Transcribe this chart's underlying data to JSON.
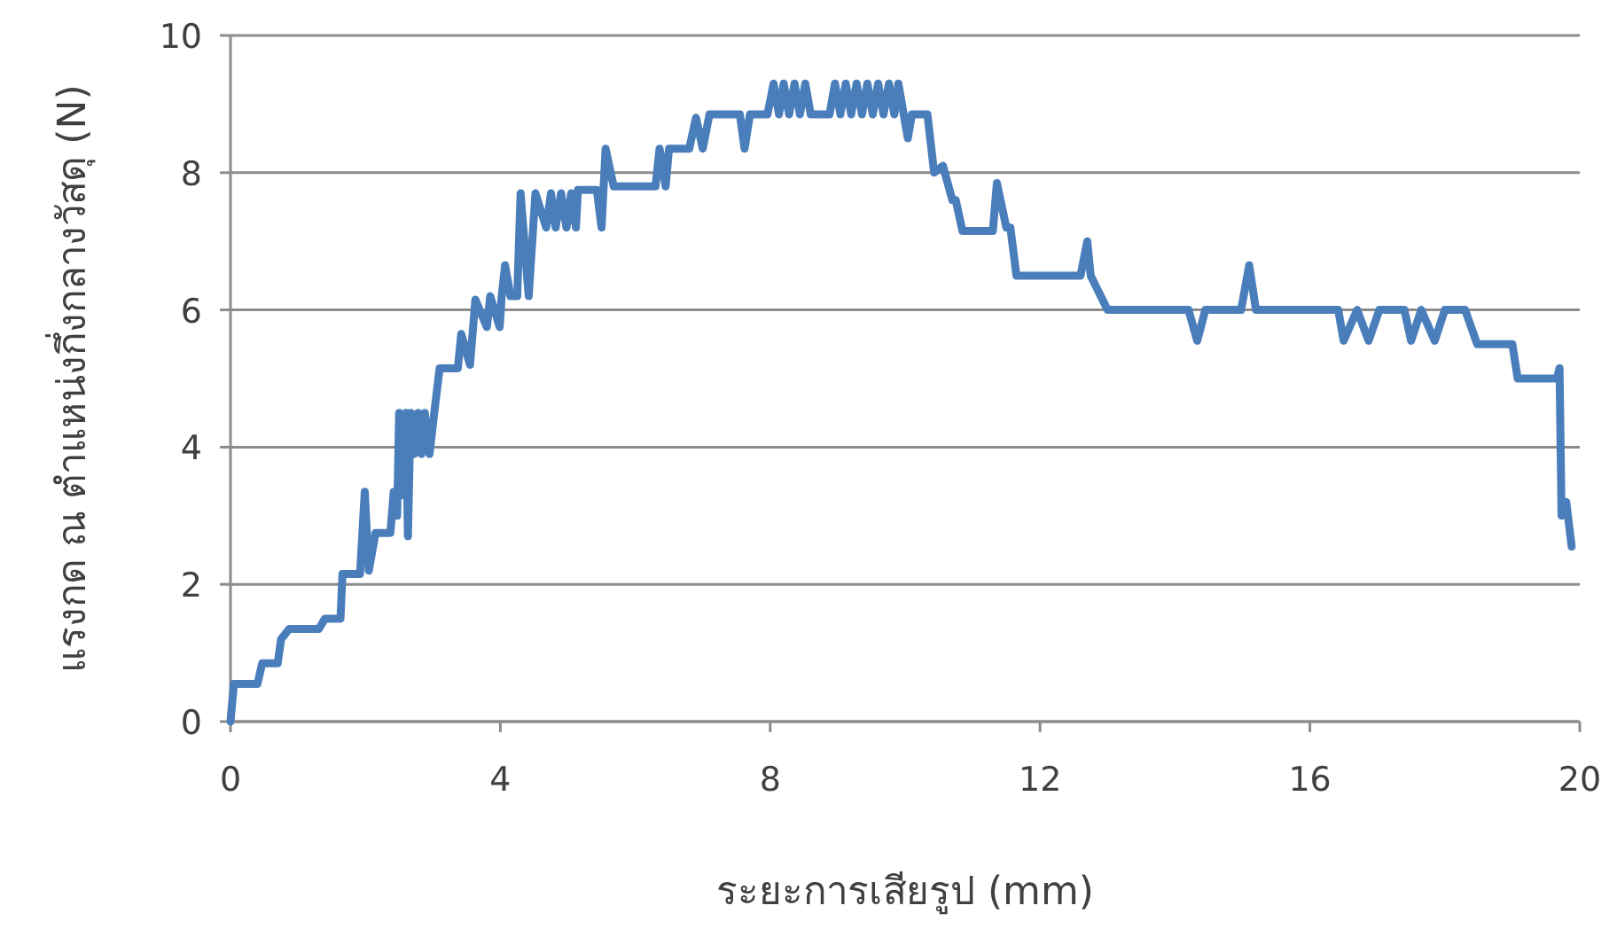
{
  "chart_data": {
    "type": "line",
    "xlabel": "ระยะการเสียรูป (mm)",
    "ylabel": "แรงกด ณ ตำแหน่งกึ่งกลางวัสดุ (N)",
    "xlim": [
      0,
      20
    ],
    "xticks": [
      0,
      4,
      8,
      12,
      16,
      20
    ],
    "ylim": [
      0,
      10
    ],
    "yticks": [
      0,
      2,
      4,
      6,
      8,
      10
    ],
    "grid": "y",
    "line_style": "solid",
    "series": [
      {
        "color": "#4a7ebb",
        "x": [
          0,
          0.05,
          0.4,
          0.47,
          0.7,
          0.75,
          0.87,
          1.31,
          1.4,
          1.63,
          1.66,
          1.92,
          1.99,
          2.05,
          2.15,
          2.37,
          2.42,
          2.47,
          2.5,
          2.55,
          2.6,
          2.63,
          2.67,
          2.72,
          2.78,
          2.83,
          2.88,
          2.95,
          3.02,
          3.1,
          3.37,
          3.42,
          3.55,
          3.63,
          3.8,
          3.85,
          3.99,
          4.02,
          4.07,
          4.15,
          4.25,
          4.3,
          4.42,
          4.52,
          4.68,
          4.75,
          4.82,
          4.9,
          4.98,
          5.05,
          5.12,
          5.15,
          5.43,
          5.5,
          5.56,
          5.68,
          6.3,
          6.36,
          6.45,
          6.5,
          6.8,
          6.9,
          7.0,
          7.1,
          7.55,
          7.62,
          7.7,
          7.96,
          8.05,
          8.13,
          8.2,
          8.28,
          8.36,
          8.44,
          8.52,
          8.6,
          8.88,
          8.96,
          9.04,
          9.12,
          9.2,
          9.28,
          9.36,
          9.44,
          9.52,
          9.6,
          9.68,
          9.76,
          9.84,
          9.9,
          10.04,
          10.1,
          10.33,
          10.43,
          10.56,
          10.7,
          10.75,
          10.85,
          11.3,
          11.36,
          11.5,
          11.56,
          11.65,
          12.6,
          12.7,
          12.75,
          13.0,
          14.2,
          14.33,
          14.45,
          14.98,
          15.1,
          15.2,
          16.42,
          16.5,
          16.7,
          16.87,
          17.03,
          17.4,
          17.5,
          17.65,
          17.85,
          18.0,
          18.3,
          18.48,
          19.0,
          19.08,
          19.66,
          19.7,
          19.73,
          19.8,
          19.88
        ],
        "values": [
          0,
          0.55,
          0.55,
          0.85,
          0.85,
          1.2,
          1.35,
          1.35,
          1.5,
          1.5,
          2.15,
          2.15,
          3.35,
          2.2,
          2.75,
          2.75,
          3.35,
          3.0,
          4.5,
          3.3,
          4.5,
          2.7,
          4.5,
          3.9,
          4.5,
          3.9,
          4.5,
          3.9,
          4.5,
          5.15,
          5.15,
          5.65,
          5.2,
          6.15,
          5.75,
          6.2,
          5.75,
          6.2,
          6.65,
          6.2,
          6.2,
          7.7,
          6.2,
          7.7,
          7.2,
          7.7,
          7.2,
          7.7,
          7.2,
          7.7,
          7.2,
          7.75,
          7.75,
          7.2,
          8.35,
          7.8,
          7.8,
          8.35,
          7.8,
          8.35,
          8.35,
          8.8,
          8.35,
          8.85,
          8.85,
          8.35,
          8.85,
          8.85,
          9.3,
          8.85,
          9.3,
          8.85,
          9.3,
          8.85,
          9.3,
          8.85,
          8.85,
          9.3,
          8.85,
          9.3,
          8.85,
          9.3,
          8.85,
          9.3,
          8.85,
          9.3,
          8.85,
          9.3,
          8.85,
          9.3,
          8.5,
          8.85,
          8.85,
          8.0,
          8.1,
          7.6,
          7.6,
          7.15,
          7.15,
          7.85,
          7.2,
          7.2,
          6.5,
          6.5,
          7.0,
          6.5,
          6.0,
          6.0,
          5.55,
          6.0,
          6.0,
          6.65,
          6.0,
          6.0,
          5.55,
          6.0,
          5.55,
          6.0,
          6.0,
          5.55,
          6.0,
          5.55,
          6.0,
          6.0,
          5.5,
          5.5,
          5.0,
          5.0,
          5.15,
          3.0,
          3.2,
          2.55
        ]
      }
    ]
  }
}
